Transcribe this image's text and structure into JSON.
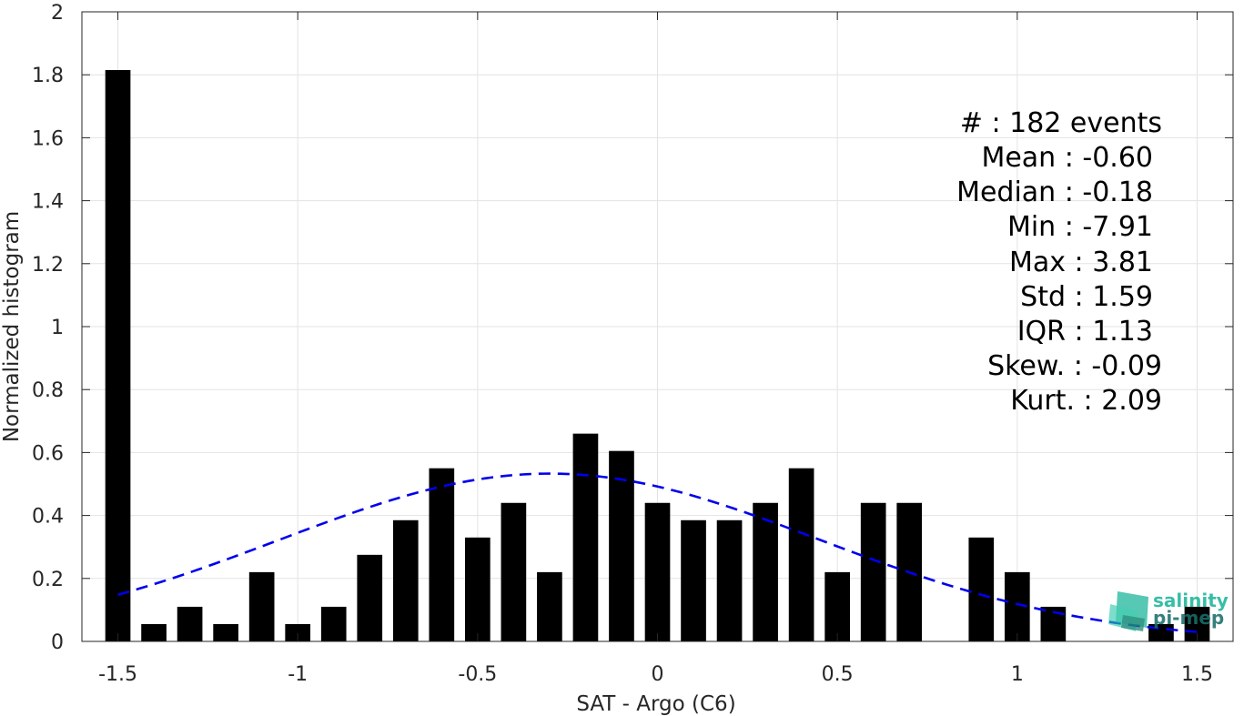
{
  "chart_data": {
    "type": "bar",
    "xlabel": "SAT - Argo (C6)",
    "ylabel": "Normalized histogram",
    "xlim": [
      -1.6,
      1.6
    ],
    "ylim": [
      0,
      2
    ],
    "xticks": [
      -1.5,
      -1,
      -0.5,
      0,
      0.5,
      1,
      1.5
    ],
    "xtick_labels": [
      "-1.5",
      "-1",
      "-0.5",
      "0",
      "0.5",
      "1",
      "1.5"
    ],
    "yticks": [
      0,
      0.2,
      0.4,
      0.6,
      0.8,
      1,
      1.2,
      1.4,
      1.6,
      1.8,
      2
    ],
    "ytick_labels": [
      "0",
      "0.2",
      "0.4",
      "0.6",
      "0.8",
      "1",
      "1.2",
      "1.4",
      "1.6",
      "1.8",
      "2"
    ],
    "grid": true,
    "bar_width": 0.07,
    "bar_color": "#000000",
    "x": [
      -1.5,
      -1.4,
      -1.3,
      -1.2,
      -1.1,
      -1.0,
      -0.9,
      -0.8,
      -0.7,
      -0.6,
      -0.5,
      -0.4,
      -0.3,
      -0.2,
      -0.1,
      0.0,
      0.1,
      0.2,
      0.3,
      0.4,
      0.5,
      0.6,
      0.7,
      0.8,
      0.9,
      1.0,
      1.1,
      1.2,
      1.3,
      1.4,
      1.5
    ],
    "values": [
      1.815,
      0.055,
      0.11,
      0.055,
      0.22,
      0.055,
      0.11,
      0.275,
      0.385,
      0.55,
      0.33,
      0.44,
      0.22,
      0.66,
      0.605,
      0.44,
      0.385,
      0.385,
      0.44,
      0.55,
      0.22,
      0.44,
      0.44,
      0,
      0.33,
      0.22,
      0.11,
      0,
      0,
      0.055,
      0.11
    ],
    "fit_curve": {
      "style": "dashed",
      "color": "#0000ee",
      "mean": -0.3,
      "std": 0.75,
      "peak": 0.533,
      "x_range": [
        -1.5,
        1.5
      ]
    },
    "stats_box": {
      "lines": [
        "#  : 182 events",
        "Mean : -0.60",
        "Median : -0.18",
        "Min : -7.91",
        "Max : 3.81",
        "Std : 1.59",
        "IQR : 1.13",
        "Skew. : -0.09",
        "Kurt. : 2.09"
      ]
    }
  },
  "logo": {
    "line1": "salinity",
    "line2": "pi-mep",
    "color1": "#1db59a",
    "color2": "#1a6f6a"
  }
}
